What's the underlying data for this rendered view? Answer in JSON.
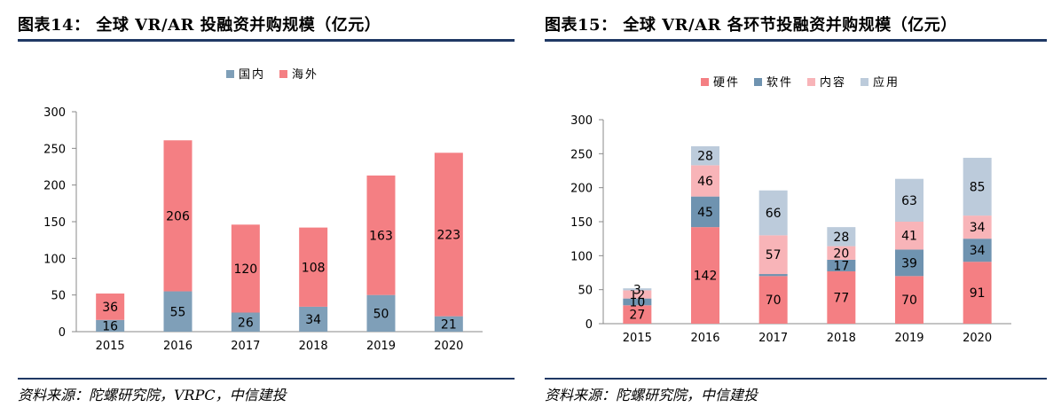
{
  "colors": {
    "domestic": "#7f9fb8",
    "overseas": "#f47f83",
    "hardware": "#f47f83",
    "software": "#6f93b0",
    "content": "#f8b4b8",
    "application": "#bccbdb",
    "rule": "#1f3864"
  },
  "left": {
    "title": "图表14：  全球 VR/AR 投融资并购规模（亿元）",
    "source": "资料来源：陀螺研究院，VRPC，中信建投",
    "chart_data": {
      "type": "bar",
      "stacked": true,
      "categories": [
        "2015",
        "2016",
        "2017",
        "2018",
        "2019",
        "2020"
      ],
      "series": [
        {
          "name": "国内",
          "values": [
            16,
            55,
            26,
            34,
            50,
            21
          ]
        },
        {
          "name": "海外",
          "values": [
            36,
            206,
            120,
            108,
            163,
            223
          ]
        }
      ],
      "ylim": [
        0,
        300
      ],
      "yticks": [
        "0",
        "50",
        "100",
        "150",
        "200",
        "250",
        "300"
      ],
      "legend": "top-center"
    }
  },
  "right": {
    "title": "图表15：  全球 VR/AR 各环节投融资并购规模（亿元）",
    "source": "资料来源：陀螺研究院，中信建投",
    "chart_data": {
      "type": "bar",
      "stacked": true,
      "categories": [
        "2015",
        "2016",
        "2017",
        "2018",
        "2019",
        "2020"
      ],
      "series": [
        {
          "name": "硬件",
          "values": [
            27,
            142,
            70,
            77,
            70,
            91
          ]
        },
        {
          "name": "软件",
          "values": [
            10,
            45,
            3,
            17,
            39,
            34
          ]
        },
        {
          "name": "内容",
          "values": [
            12,
            46,
            57,
            20,
            41,
            34
          ]
        },
        {
          "name": "应用",
          "values": [
            3,
            28,
            66,
            28,
            63,
            85
          ]
        }
      ],
      "labels_hidden": [
        [
          false,
          false,
          false,
          false
        ],
        [
          false,
          false,
          false,
          false
        ],
        [
          false,
          true,
          false,
          false
        ],
        [
          false,
          false,
          false,
          false
        ],
        [
          false,
          false,
          false,
          false
        ],
        [
          false,
          false,
          false,
          false
        ]
      ],
      "ylim": [
        0,
        300
      ],
      "yticks": [
        "0",
        "50",
        "100",
        "150",
        "200",
        "250",
        "300"
      ],
      "legend": "top-center"
    }
  }
}
